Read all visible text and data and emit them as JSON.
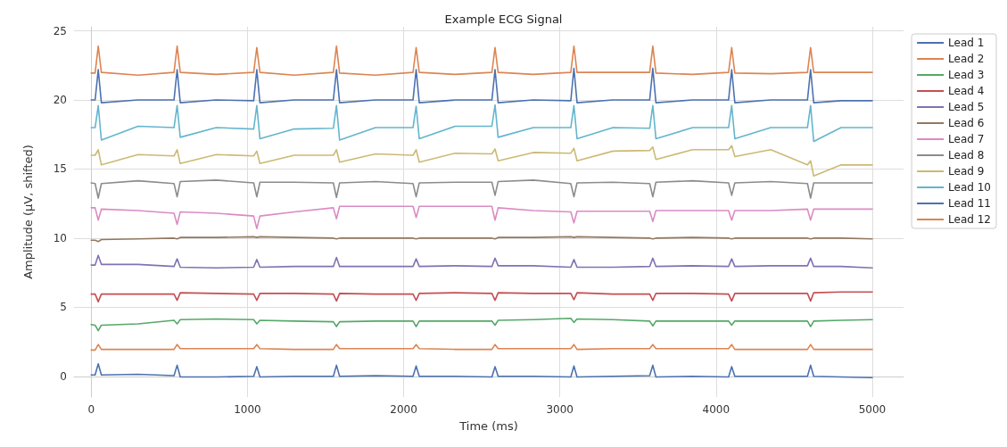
{
  "chart_data": {
    "type": "line",
    "title": "Example ECG Signal",
    "xlabel": "Time (ms)",
    "ylabel": "Amplitude (µV, shifted)",
    "x": [
      0,
      25,
      45,
      65,
      300,
      530,
      550,
      570,
      800,
      1040,
      1060,
      1080,
      1300,
      1550,
      1570,
      1590,
      1820,
      2060,
      2080,
      2100,
      2330,
      2565,
      2585,
      2605,
      2830,
      3070,
      3090,
      3110,
      3340,
      3575,
      3595,
      3615,
      3850,
      4080,
      4100,
      4120,
      4350,
      4585,
      4605,
      4625,
      4800,
      5000
    ],
    "xlim": [
      -110,
      5200
    ],
    "xticks": [
      0,
      1000,
      2000,
      3000,
      4000,
      5000
    ],
    "ylim": [
      -1.5,
      25.3
    ],
    "yticks": [
      0,
      5,
      10,
      15,
      20,
      25
    ],
    "grid": true,
    "legend": "top right",
    "marker": "none",
    "line_style": "solid",
    "series": [
      {
        "name": "Lead 1",
        "color": "#4c72b0",
        "values": [
          0.1,
          0.1,
          0.9,
          0.1,
          0.15,
          0.05,
          0.8,
          -0.05,
          -0.05,
          0,
          0.7,
          -0.05,
          0,
          0,
          0.8,
          0,
          0.05,
          0,
          0.75,
          0,
          0,
          -0.05,
          0.7,
          0,
          0,
          -0.05,
          0.75,
          -0.05,
          0,
          0.05,
          0.8,
          -0.05,
          0,
          -0.05,
          0.7,
          0,
          0,
          0,
          0.8,
          0,
          -0.05,
          -0.1
        ]
      },
      {
        "name": "Lead 2",
        "color": "#dd8452",
        "values": [
          1.9,
          1.9,
          2.3,
          1.95,
          1.95,
          1.95,
          2.3,
          2.0,
          2.0,
          2.0,
          2.3,
          2.0,
          1.95,
          1.95,
          2.3,
          2.0,
          2.0,
          2.0,
          2.3,
          2.0,
          1.95,
          1.95,
          2.3,
          2.0,
          2.0,
          2.0,
          2.3,
          1.95,
          2.0,
          2.0,
          2.3,
          2.0,
          2.0,
          2.0,
          2.3,
          1.95,
          1.95,
          1.95,
          2.3,
          1.95,
          1.95,
          1.95
        ]
      },
      {
        "name": "Lead 3",
        "color": "#55a868",
        "values": [
          3.75,
          3.7,
          3.3,
          3.7,
          3.8,
          4.05,
          3.8,
          4.1,
          4.15,
          4.1,
          3.8,
          4.05,
          4.0,
          3.95,
          3.6,
          3.95,
          4.0,
          4.0,
          3.6,
          4.0,
          4.0,
          4.0,
          3.7,
          4.05,
          4.1,
          4.2,
          3.9,
          4.15,
          4.1,
          4.0,
          3.65,
          4.0,
          4.0,
          4.0,
          3.7,
          4.0,
          4.0,
          4.0,
          3.6,
          4.0,
          4.05,
          4.1
        ]
      },
      {
        "name": "Lead 4",
        "color": "#c44e52",
        "values": [
          5.95,
          5.95,
          5.4,
          5.95,
          5.95,
          5.95,
          5.5,
          6.05,
          6.0,
          5.95,
          5.5,
          6.0,
          6.0,
          5.95,
          5.45,
          6.0,
          5.95,
          5.95,
          5.5,
          6.0,
          6.05,
          6.0,
          5.5,
          6.05,
          6.0,
          6.0,
          5.55,
          6.05,
          5.95,
          5.95,
          5.5,
          6.0,
          6.0,
          5.95,
          5.45,
          6.0,
          6.0,
          6.0,
          5.45,
          6.05,
          6.1,
          6.1
        ]
      },
      {
        "name": "Lead 5",
        "color": "#8172b3",
        "values": [
          8.05,
          8.05,
          8.75,
          8.1,
          8.1,
          7.95,
          8.5,
          7.9,
          7.85,
          7.9,
          8.45,
          7.9,
          7.95,
          7.95,
          8.6,
          7.95,
          7.95,
          7.95,
          8.5,
          7.95,
          8.0,
          7.95,
          8.55,
          8.0,
          8.0,
          7.9,
          8.45,
          7.9,
          7.9,
          7.95,
          8.55,
          7.95,
          8.0,
          7.95,
          8.5,
          7.95,
          8.0,
          8.0,
          8.55,
          7.95,
          7.95,
          7.85
        ]
      },
      {
        "name": "Lead 6",
        "color": "#937860",
        "values": [
          9.85,
          9.85,
          9.75,
          9.9,
          9.95,
          10.0,
          9.95,
          10.05,
          10.05,
          10.1,
          10.05,
          10.1,
          10.05,
          10.0,
          9.95,
          10.0,
          10.0,
          10.0,
          9.95,
          10.0,
          10.0,
          10.0,
          9.95,
          10.05,
          10.05,
          10.1,
          10.05,
          10.1,
          10.05,
          10.0,
          9.95,
          10.0,
          10.05,
          10.0,
          9.95,
          10.0,
          10.0,
          10.0,
          9.95,
          10.0,
          10.0,
          9.95
        ]
      },
      {
        "name": "Lead 7",
        "color": "#da8bc3",
        "values": [
          12.2,
          12.2,
          11.3,
          12.1,
          12.0,
          11.8,
          11.0,
          11.9,
          11.8,
          11.6,
          10.7,
          11.6,
          11.9,
          12.2,
          11.4,
          12.3,
          12.3,
          12.3,
          11.5,
          12.3,
          12.3,
          12.3,
          11.3,
          12.2,
          12.0,
          11.9,
          11.1,
          11.95,
          11.95,
          11.95,
          11.2,
          12.0,
          12.0,
          12.0,
          11.3,
          12.0,
          12.0,
          12.1,
          11.3,
          12.1,
          12.1,
          12.1
        ]
      },
      {
        "name": "Lead 8",
        "color": "#8c8c8c",
        "values": [
          14.0,
          13.95,
          12.9,
          13.95,
          14.15,
          13.95,
          13.0,
          14.1,
          14.2,
          14.0,
          13.0,
          14.05,
          14.05,
          14.0,
          12.95,
          14.0,
          14.1,
          13.95,
          13.0,
          14.0,
          14.05,
          14.05,
          13.1,
          14.1,
          14.2,
          13.95,
          13.0,
          14.0,
          14.05,
          13.95,
          13.0,
          14.05,
          14.15,
          14.0,
          13.1,
          14.0,
          14.1,
          13.95,
          12.9,
          14.0,
          14.0,
          14.0
        ]
      },
      {
        "name": "Lead 9",
        "color": "#ccb974",
        "values": [
          16.0,
          16.0,
          16.4,
          15.3,
          16.05,
          15.95,
          16.4,
          15.4,
          16.05,
          15.95,
          16.3,
          15.4,
          16.0,
          16.0,
          16.4,
          15.5,
          16.1,
          16.0,
          16.4,
          15.5,
          16.15,
          16.1,
          16.45,
          15.6,
          16.2,
          16.15,
          16.5,
          15.6,
          16.3,
          16.35,
          16.6,
          15.7,
          16.4,
          16.4,
          16.7,
          15.9,
          16.4,
          15.3,
          15.6,
          14.5,
          15.3,
          15.3
        ]
      },
      {
        "name": "Lead 10",
        "color": "#64b5cd",
        "values": [
          18.0,
          18.0,
          19.6,
          17.1,
          18.1,
          18.0,
          19.6,
          17.3,
          18.0,
          17.9,
          19.6,
          17.2,
          17.9,
          17.95,
          19.6,
          17.1,
          18.0,
          18.0,
          19.55,
          17.2,
          18.1,
          18.1,
          19.65,
          17.3,
          18.0,
          18.0,
          19.6,
          17.2,
          18.0,
          17.95,
          19.6,
          17.2,
          18.0,
          18.0,
          19.6,
          17.2,
          18.0,
          18.0,
          19.6,
          17.0,
          18.0,
          18.0
        ]
      },
      {
        "name": "Lead 11",
        "color": "#4c72b0",
        "values": [
          20.0,
          20.0,
          22.2,
          19.8,
          20.0,
          20.0,
          22.2,
          19.8,
          20.0,
          19.95,
          22.2,
          19.8,
          20.0,
          20.0,
          22.2,
          19.8,
          20.0,
          20.0,
          22.2,
          19.8,
          20.0,
          20.0,
          22.2,
          19.8,
          20.0,
          19.95,
          22.3,
          19.8,
          20.0,
          20.0,
          22.3,
          19.8,
          20.0,
          20.0,
          22.2,
          19.8,
          20.0,
          20.0,
          22.2,
          19.8,
          19.95,
          19.95
        ]
      },
      {
        "name": "Lead 12",
        "color": "#dd8452",
        "values": [
          21.95,
          21.95,
          23.9,
          22.0,
          21.8,
          22.0,
          23.9,
          22.0,
          21.85,
          22.0,
          23.8,
          22.0,
          21.8,
          22.0,
          23.9,
          21.95,
          21.8,
          22.0,
          23.8,
          22.0,
          21.85,
          22.0,
          23.8,
          22.0,
          21.85,
          22.0,
          23.9,
          22.0,
          22.0,
          22.0,
          23.9,
          21.95,
          21.85,
          22.0,
          23.8,
          21.95,
          21.9,
          22.0,
          23.8,
          22.0,
          22.0,
          22.0
        ]
      }
    ]
  }
}
